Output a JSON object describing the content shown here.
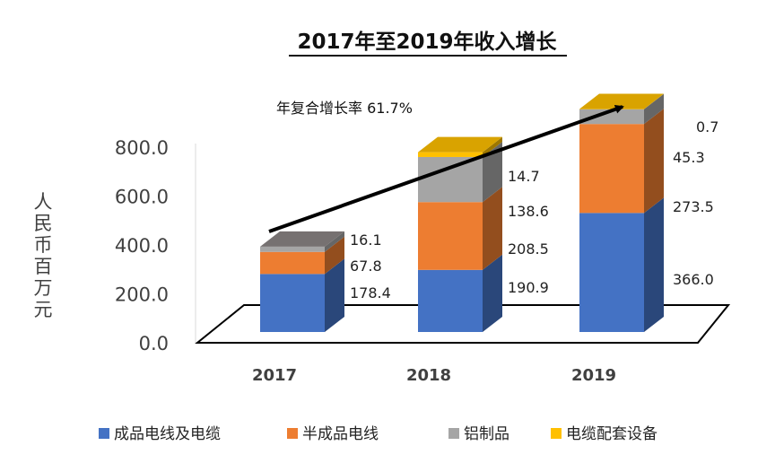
{
  "chart_data": {
    "type": "bar",
    "stacked": true,
    "style": "3d",
    "title": "2017年至2019年收入增长",
    "ylabel": "人民币百万元",
    "ylim": [
      0,
      800
    ],
    "yticks": [
      "0.0",
      "200.0",
      "400.0",
      "600.0",
      "800.0"
    ],
    "categories": [
      "2017",
      "2018",
      "2019"
    ],
    "series": [
      {
        "name": "成品电线及电缆",
        "color": "#4472C4",
        "values": [
          178.4,
          190.9,
          366.0
        ],
        "labels": [
          "178.4",
          "190.9",
          "366.0"
        ]
      },
      {
        "name": "半成品电线",
        "color": "#ED7D31",
        "values": [
          67.8,
          208.5,
          273.5
        ],
        "labels": [
          "67.8",
          "208.5",
          "273.5"
        ]
      },
      {
        "name": "铝制品",
        "color": "#A5A5A5",
        "values": [
          16.1,
          138.6,
          45.3
        ],
        "labels": [
          "16.1",
          "138.6",
          "45.3"
        ]
      },
      {
        "name": "电缆配套设备",
        "color": "#FFC000",
        "values": [
          0,
          14.7,
          0.7
        ],
        "labels": [
          "",
          "14.7",
          "0.7"
        ]
      }
    ],
    "annotation": "年复合增长率 61.7%",
    "legend_position": "bottom",
    "grid": false
  }
}
